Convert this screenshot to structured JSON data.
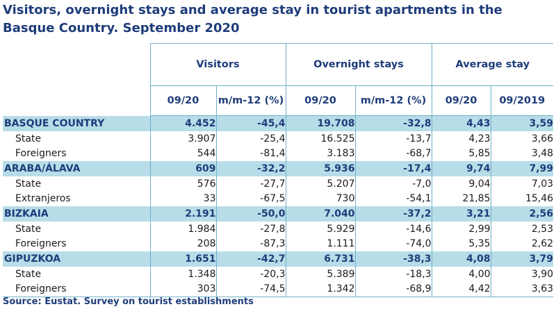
{
  "title": "Visitors, overnight stays and average stay in tourist apartments in the Basque Country. September 2020",
  "groups": {
    "visitors": "Visitors",
    "overnight": "Overnight stays",
    "average": "Average stay"
  },
  "subheaders": {
    "v_period": "09/20",
    "v_change": "m/m-12 (%)",
    "o_period": "09/20",
    "o_change": "m/m-12 (%)",
    "a_period": "09/20",
    "a_prev": "09/2019"
  },
  "rows": [
    {
      "label": "BASQUE COUNTRY",
      "v": "4.452",
      "vc": "-45,4",
      "o": "19.708",
      "oc": "-32,8",
      "a": "4,43",
      "ap": "3,59"
    },
    {
      "label": "State",
      "v": "3.907",
      "vc": "-25,4",
      "o": "16.525",
      "oc": "-13,7",
      "a": "4,23",
      "ap": "3,66"
    },
    {
      "label": "Foreigners",
      "v": "544",
      "vc": "-81,4",
      "o": "3.183",
      "oc": "-68,7",
      "a": "5,85",
      "ap": "3,48"
    },
    {
      "label": "ARABA/ÁLAVA",
      "v": "609",
      "vc": "-32,2",
      "o": "5.936",
      "oc": "-17,4",
      "a": "9,74",
      "ap": "7,99"
    },
    {
      "label": "State",
      "v": "576",
      "vc": "-27,7",
      "o": "5.207",
      "oc": "-7,0",
      "a": "9,04",
      "ap": "7,03"
    },
    {
      "label": "Extranjeros",
      "v": "33",
      "vc": "-67,5",
      "o": "730",
      "oc": "-54,1",
      "a": "21,85",
      "ap": "15,46"
    },
    {
      "label": "BIZKAIA",
      "v": "2.191",
      "vc": "-50,0",
      "o": "7.040",
      "oc": "-37,2",
      "a": "3,21",
      "ap": "2,56"
    },
    {
      "label": "State",
      "v": "1.984",
      "vc": "-27,8",
      "o": "5.929",
      "oc": "-14,6",
      "a": "2,99",
      "ap": "2,53"
    },
    {
      "label": "Foreigners",
      "v": "208",
      "vc": "-87,3",
      "o": "1.111",
      "oc": "-74,0",
      "a": "5,35",
      "ap": "2,62"
    },
    {
      "label": "GIPUZKOA",
      "v": "1.651",
      "vc": "-42,7",
      "o": "6.731",
      "oc": "-38,3",
      "a": "4,08",
      "ap": "3,79"
    },
    {
      "label": "State",
      "v": "1.348",
      "vc": "-20,3",
      "o": "5.389",
      "oc": "-18,3",
      "a": "4,00",
      "ap": "3,90"
    },
    {
      "label": "Foreigners",
      "v": "303",
      "vc": "-74,5",
      "o": "1.342",
      "oc": "-68,9",
      "a": "4,42",
      "ap": "3,63"
    }
  ],
  "source": "Source: Eustat. Survey on tourist establishments"
}
